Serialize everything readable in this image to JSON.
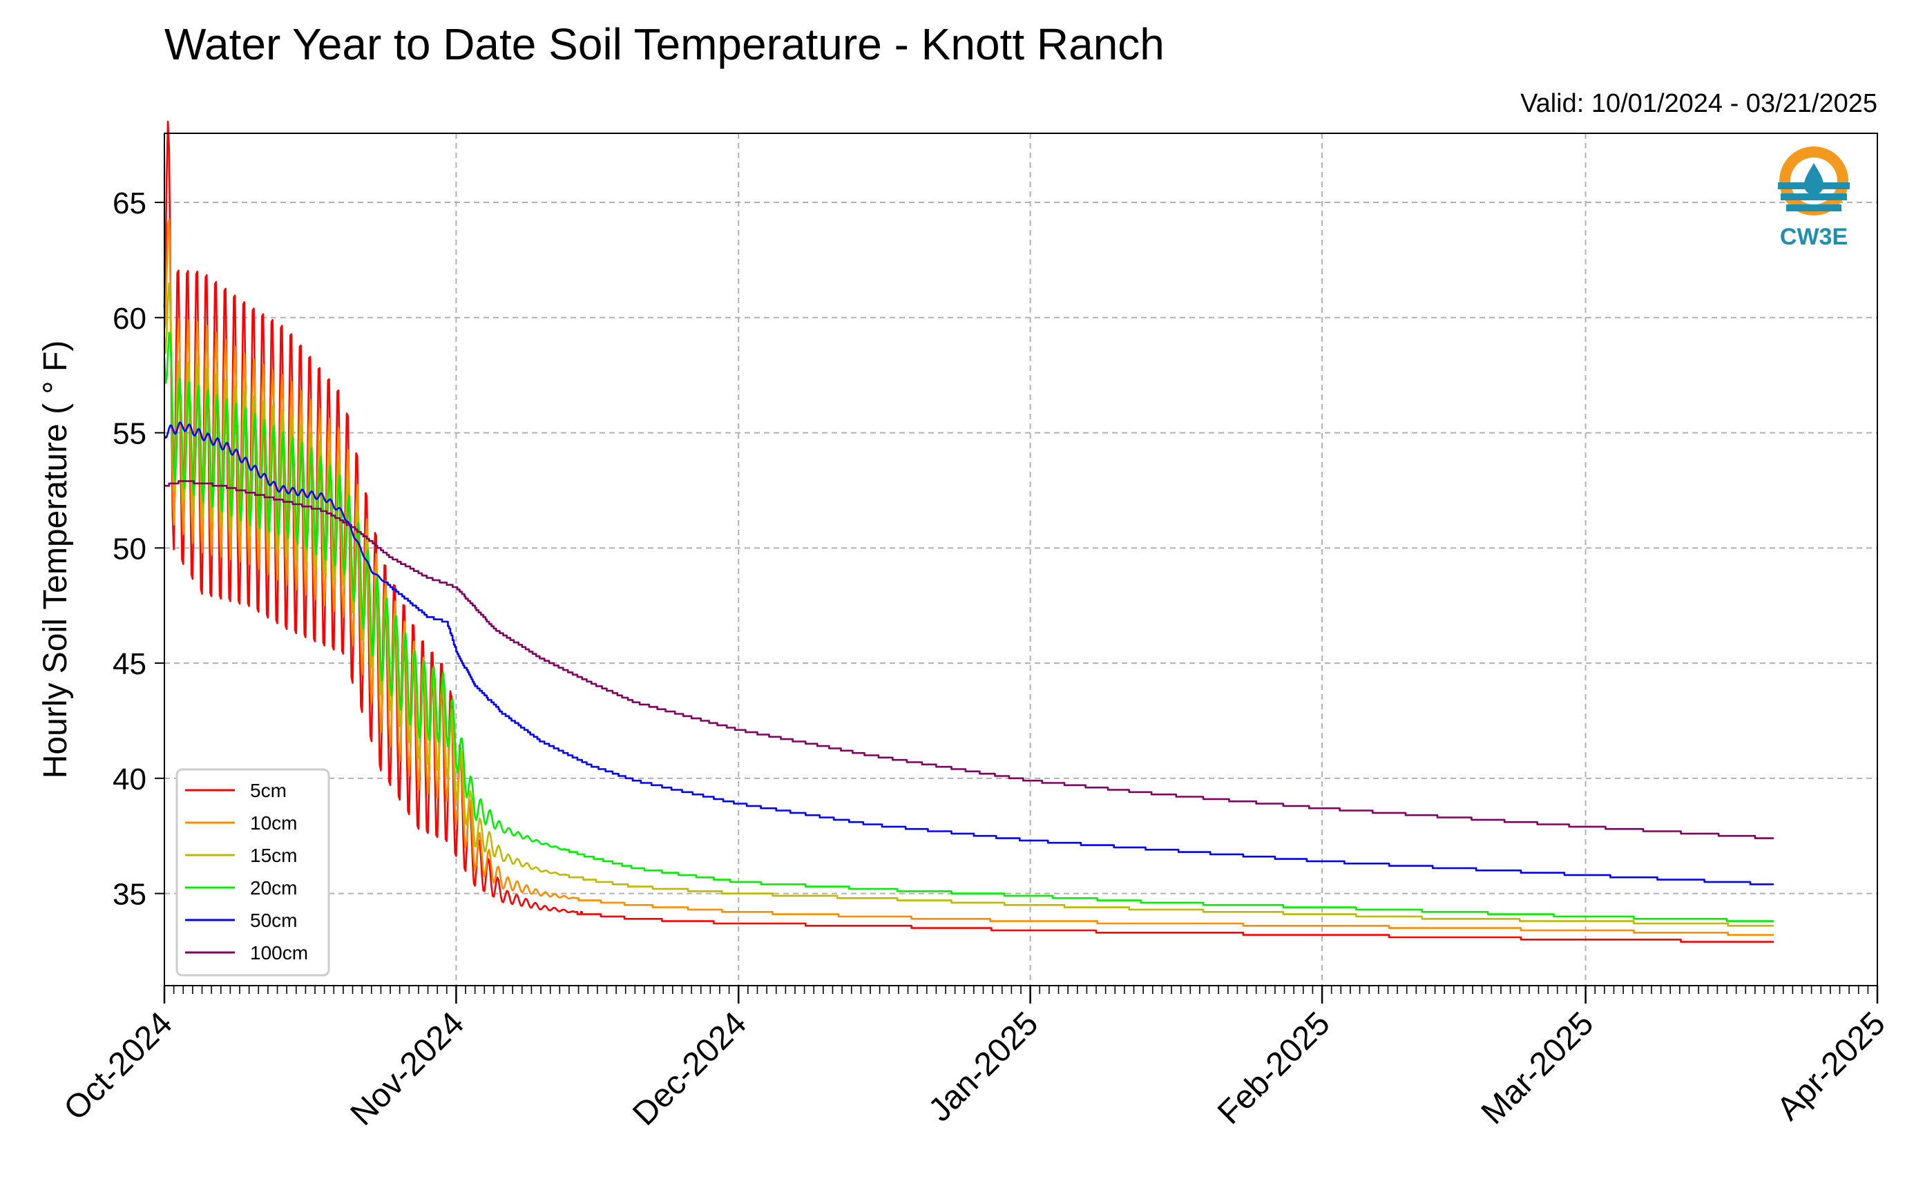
{
  "chart_data": {
    "type": "line",
    "title": "Water Year to Date Soil Temperature - Knott Ranch",
    "subtitle": "Valid: 10/01/2024 - 03/21/2025",
    "ylabel": "Hourly Soil Temperature ( ° F)",
    "xlabel": "",
    "ylim": [
      31,
      68
    ],
    "xlim": [
      "2024-10-01",
      "2025-04-01"
    ],
    "x_ticks": [
      "Oct-2024",
      "Nov-2024",
      "Dec-2024",
      "Jan-2025",
      "Feb-2025",
      "Mar-2025",
      "Apr-2025"
    ],
    "y_ticks": [
      35,
      40,
      45,
      50,
      55,
      60,
      65
    ],
    "grid": true,
    "legend_position": "lower-left",
    "logo": {
      "text": "CW3E",
      "colors": {
        "orange": "#f39a1e",
        "teal": "#1f8fb0"
      }
    },
    "series": [
      {
        "name": "5cm",
        "color": "#ff0000",
        "x": [
          "2024-10-01",
          "2024-10-02",
          "2024-10-05",
          "2024-10-10",
          "2024-10-14",
          "2024-10-17",
          "2024-10-20",
          "2024-10-24",
          "2024-10-28",
          "2024-10-31",
          "2024-11-03",
          "2024-11-06",
          "2024-11-10",
          "2024-11-15",
          "2024-11-20",
          "2024-12-01",
          "2024-12-15",
          "2025-01-01",
          "2025-01-15",
          "2025-02-01",
          "2025-02-15",
          "2025-03-01",
          "2025-03-21"
        ],
        "y": [
          66.5,
          56,
          55,
          54,
          53,
          52,
          51,
          45,
          42,
          41,
          36.5,
          34.9,
          34.4,
          34.1,
          33.9,
          33.7,
          33.6,
          33.4,
          33.3,
          33.2,
          33.1,
          33.0,
          32.9
        ],
        "diurnal": [
          13,
          13,
          15,
          14,
          14,
          13,
          12,
          10,
          9,
          8,
          2.5,
          0.6,
          0.2,
          0,
          0,
          0,
          0,
          0,
          0,
          0,
          0,
          0,
          0
        ]
      },
      {
        "name": "10cm",
        "color": "#ff8c00",
        "x": [
          "2024-10-01",
          "2024-10-02",
          "2024-10-05",
          "2024-10-10",
          "2024-10-14",
          "2024-10-17",
          "2024-10-20",
          "2024-10-24",
          "2024-10-28",
          "2024-10-31",
          "2024-11-03",
          "2024-11-06",
          "2024-11-10",
          "2024-11-15",
          "2024-11-20",
          "2024-12-01",
          "2024-12-15",
          "2025-01-01",
          "2025-01-15",
          "2025-02-01",
          "2025-02-15",
          "2025-03-01",
          "2025-03-21"
        ],
        "y": [
          64,
          55.5,
          54.8,
          53.8,
          52.9,
          52,
          51,
          45.5,
          42.5,
          41.5,
          37,
          35.5,
          35.0,
          34.7,
          34.5,
          34.2,
          34.0,
          33.8,
          33.7,
          33.6,
          33.5,
          33.4,
          33.2
        ],
        "diurnal": [
          9,
          9,
          10,
          9,
          9,
          8.5,
          8,
          7,
          6,
          5,
          2,
          0.6,
          0.2,
          0,
          0,
          0,
          0,
          0,
          0,
          0,
          0,
          0,
          0
        ]
      },
      {
        "name": "15cm",
        "color": "#bdb800",
        "x": [
          "2024-10-01",
          "2024-10-02",
          "2024-10-05",
          "2024-10-10",
          "2024-10-14",
          "2024-10-17",
          "2024-10-20",
          "2024-10-24",
          "2024-10-28",
          "2024-10-31",
          "2024-11-03",
          "2024-11-06",
          "2024-11-10",
          "2024-11-15",
          "2024-11-20",
          "2024-12-01",
          "2024-12-15",
          "2025-01-01",
          "2025-01-15",
          "2025-02-01",
          "2025-02-15",
          "2025-03-01",
          "2025-03-21"
        ],
        "y": [
          62,
          55.3,
          54.6,
          53.6,
          52.8,
          52,
          51,
          46,
          43,
          42,
          37.8,
          36.6,
          36.0,
          35.6,
          35.3,
          35.0,
          34.8,
          34.5,
          34.3,
          34.1,
          33.9,
          33.8,
          33.6
        ],
        "diurnal": [
          6,
          6,
          7,
          6.5,
          6.5,
          6,
          5.5,
          5,
          4.5,
          4,
          1.6,
          0.4,
          0.1,
          0,
          0,
          0,
          0,
          0,
          0,
          0,
          0,
          0,
          0
        ]
      },
      {
        "name": "20cm",
        "color": "#00ee00",
        "x": [
          "2024-10-01",
          "2024-10-02",
          "2024-10-05",
          "2024-10-10",
          "2024-10-14",
          "2024-10-17",
          "2024-10-20",
          "2024-10-24",
          "2024-10-28",
          "2024-10-31",
          "2024-11-03",
          "2024-11-06",
          "2024-11-10",
          "2024-11-15",
          "2024-11-20",
          "2024-12-01",
          "2024-12-15",
          "2025-01-01",
          "2025-01-15",
          "2025-02-01",
          "2025-02-15",
          "2025-03-01",
          "2025-03-21"
        ],
        "y": [
          60,
          55.2,
          54.5,
          53.5,
          52.7,
          52,
          51,
          46.3,
          43.5,
          43,
          38.8,
          37.8,
          37.2,
          36.6,
          36.1,
          35.5,
          35.2,
          34.9,
          34.6,
          34.4,
          34.2,
          34.0,
          33.8
        ],
        "diurnal": [
          4.5,
          4.5,
          5,
          5,
          4.5,
          4.5,
          4,
          4,
          3.5,
          3,
          1.2,
          0.3,
          0.1,
          0,
          0,
          0,
          0,
          0,
          0,
          0,
          0,
          0,
          0
        ]
      },
      {
        "name": "50cm",
        "color": "#0000ff",
        "x": [
          "2024-10-01",
          "2024-10-03",
          "2024-10-08",
          "2024-10-13",
          "2024-10-18",
          "2024-10-20",
          "2024-10-23",
          "2024-10-26",
          "2024-10-29",
          "2024-10-31",
          "2024-11-01",
          "2024-11-03",
          "2024-11-06",
          "2024-11-10",
          "2024-11-15",
          "2024-11-20",
          "2024-12-01",
          "2024-12-15",
          "2025-01-01",
          "2025-01-15",
          "2025-02-01",
          "2025-02-15",
          "2025-03-01",
          "2025-03-21"
        ],
        "y": [
          55.0,
          55.3,
          54.3,
          52.6,
          52.2,
          51.5,
          49.0,
          48.0,
          47.0,
          46.8,
          45.5,
          44.0,
          42.8,
          41.6,
          40.6,
          39.9,
          38.9,
          38.0,
          37.3,
          36.9,
          36.4,
          36.1,
          35.8,
          35.4
        ],
        "diurnal": [
          0.5,
          0.4,
          0.4,
          0.3,
          0.3,
          0.2,
          0.1,
          0,
          0,
          0,
          0,
          0,
          0,
          0,
          0,
          0,
          0,
          0,
          0,
          0,
          0,
          0,
          0,
          0
        ]
      },
      {
        "name": "100cm",
        "color": "#800060",
        "x": [
          "2024-10-01",
          "2024-10-03",
          "2024-10-07",
          "2024-10-12",
          "2024-10-18",
          "2024-10-21",
          "2024-10-25",
          "2024-10-29",
          "2024-11-01",
          "2024-11-05",
          "2024-11-10",
          "2024-11-15",
          "2024-11-20",
          "2024-12-01",
          "2024-12-15",
          "2025-01-01",
          "2025-01-15",
          "2025-02-01",
          "2025-02-15",
          "2025-03-01",
          "2025-03-21"
        ],
        "y": [
          52.7,
          52.9,
          52.7,
          52.2,
          51.6,
          50.9,
          49.6,
          48.7,
          48.3,
          46.5,
          45.2,
          44.2,
          43.3,
          42.1,
          41.0,
          39.9,
          39.3,
          38.7,
          38.3,
          37.9,
          37.4
        ],
        "diurnal": [
          0,
          0,
          0,
          0,
          0,
          0,
          0,
          0,
          0,
          0,
          0,
          0,
          0,
          0,
          0,
          0,
          0,
          0,
          0,
          0,
          0
        ]
      }
    ]
  }
}
